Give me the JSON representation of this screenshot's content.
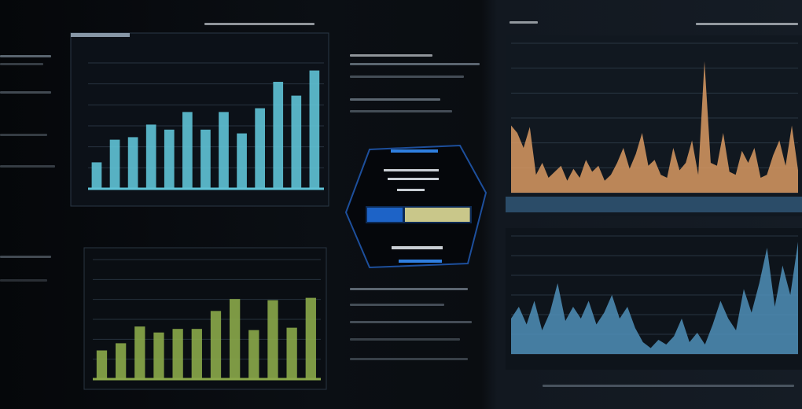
{
  "theme": {
    "background": "#07090c",
    "accent_blue": "#5fc3d6",
    "accent_green": "#8aa84a",
    "accent_orange": "#d99a63",
    "accent_series_blue": "#4f8fb8",
    "badge_blue": "#1d63c7",
    "badge_yellow": "#c9c78a"
  },
  "chart_data": [
    {
      "type": "bar",
      "panel": "top-left",
      "color": "#5fc3d6",
      "grid": true,
      "ylim": [
        0,
        100
      ],
      "values": [
        21,
        39,
        41,
        51,
        47,
        61,
        47,
        61,
        44,
        64,
        85,
        74,
        94
      ]
    },
    {
      "type": "bar",
      "panel": "bottom-left",
      "color": "#8aa84a",
      "grid": true,
      "ylim": [
        0,
        100
      ],
      "values": [
        24,
        30,
        44,
        39,
        42,
        42,
        57,
        67,
        41,
        66,
        43,
        68
      ]
    },
    {
      "type": "area",
      "panel": "top-right",
      "color": "#d99a63",
      "grid": true,
      "ylim": [
        0,
        100
      ],
      "values": [
        45,
        40,
        30,
        44,
        12,
        20,
        10,
        14,
        18,
        8,
        16,
        10,
        22,
        14,
        18,
        8,
        12,
        20,
        30,
        16,
        26,
        40,
        18,
        22,
        12,
        10,
        30,
        15,
        20,
        35,
        12,
        88,
        20,
        18,
        40,
        14,
        12,
        28,
        20,
        30,
        10,
        12,
        25,
        35,
        18,
        45,
        15
      ]
    },
    {
      "type": "area",
      "panel": "bottom-right",
      "color": "#4f8fb8",
      "grid": true,
      "ylim": [
        0,
        100
      ],
      "values": [
        30,
        40,
        25,
        45,
        20,
        35,
        60,
        28,
        40,
        30,
        45,
        25,
        35,
        50,
        30,
        40,
        22,
        10,
        5,
        12,
        8,
        15,
        30,
        10,
        18,
        8,
        25,
        45,
        30,
        20,
        55,
        35,
        60,
        90,
        40,
        75,
        50,
        95
      ]
    }
  ],
  "gauge": {
    "fill_fraction": 0.7
  }
}
